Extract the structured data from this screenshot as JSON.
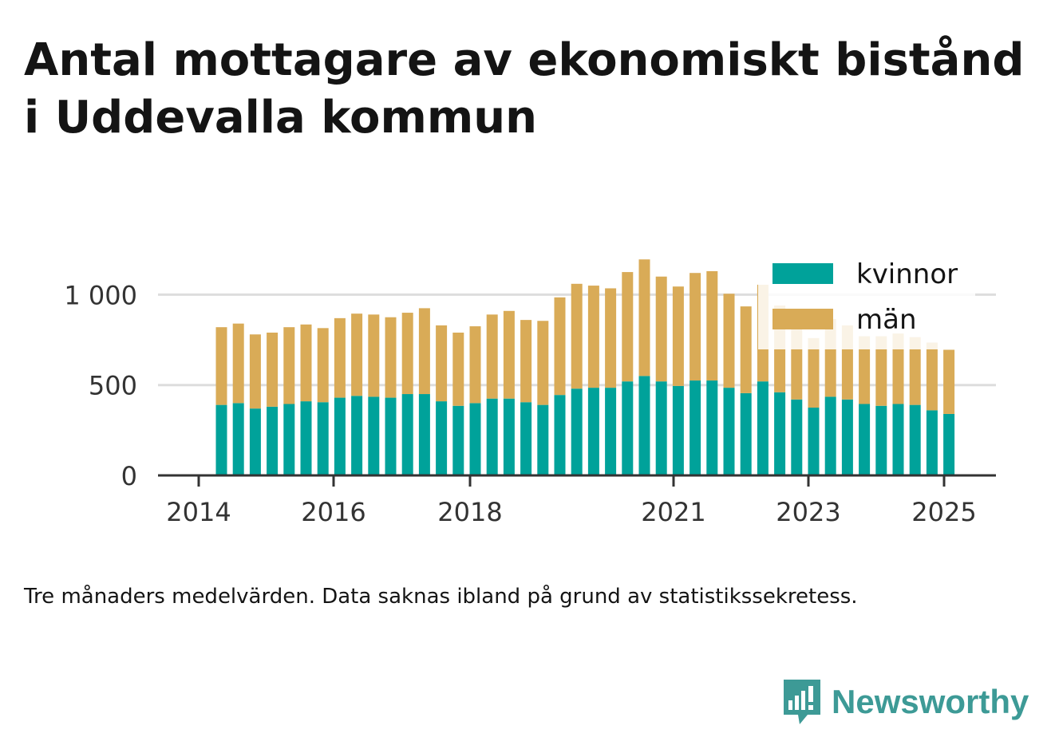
{
  "title": "Antal mottagare av ekonomiskt bistånd i Uddevalla kommun",
  "note": "Tre månaders medelvärden. Data saknas ibland på grund av statistikssekretess.",
  "brand": "Newsworthy",
  "colors": {
    "kvinnor": "#00a29a",
    "man": "#d9ab57",
    "grid": "#dddddd",
    "axis": "#333333"
  },
  "chart_data": {
    "type": "bar",
    "stacked": true,
    "x_ticks": [
      "2014",
      "2016",
      "2018",
      "2021",
      "2023",
      "2025"
    ],
    "y_ticks": [
      "0",
      "500",
      "1 000"
    ],
    "ylim": [
      0,
      1200
    ],
    "grid": true,
    "legend_position": "top-right",
    "series": [
      {
        "name": "kvinnor",
        "values": [
          390,
          400,
          370,
          380,
          395,
          410,
          405,
          430,
          440,
          435,
          430,
          450,
          450,
          410,
          385,
          400,
          425,
          425,
          405,
          390,
          445,
          480,
          485,
          485,
          520,
          550,
          520,
          495,
          525,
          525,
          485,
          455,
          520,
          460,
          420,
          375,
          435,
          420,
          395,
          385,
          395,
          390,
          360,
          340
        ]
      },
      {
        "name": "män",
        "values": [
          430,
          440,
          410,
          410,
          425,
          425,
          410,
          440,
          455,
          455,
          445,
          450,
          475,
          420,
          405,
          425,
          465,
          485,
          455,
          465,
          540,
          580,
          565,
          550,
          605,
          645,
          580,
          550,
          595,
          605,
          520,
          480,
          535,
          480,
          435,
          385,
          430,
          410,
          375,
          385,
          390,
          375,
          375,
          355
        ]
      }
    ]
  }
}
